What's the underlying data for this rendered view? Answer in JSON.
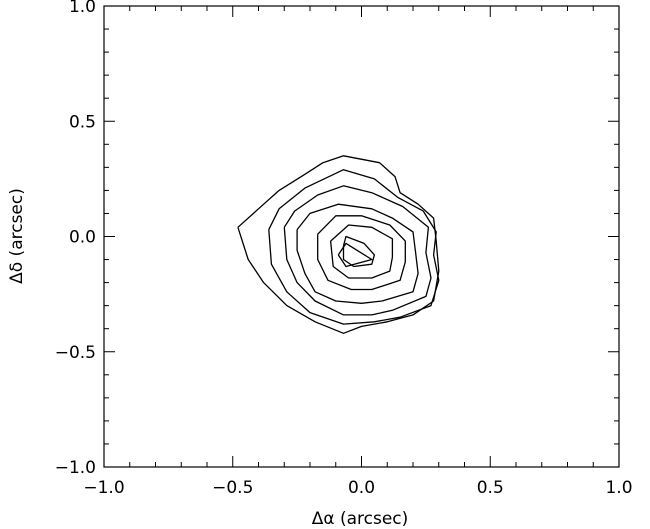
{
  "chart_data": {
    "type": "contour",
    "xlabel": "Δα (arcsec)",
    "ylabel": "Δδ (arcsec)",
    "xlim": [
      -1.0,
      1.0
    ],
    "ylim": [
      -1.0,
      1.0
    ],
    "x_major_ticks": [
      -1.0,
      -0.5,
      0.0,
      0.5,
      1.0
    ],
    "y_major_ticks": [
      -1.0,
      -0.5,
      0.0,
      0.5,
      1.0
    ],
    "x_tick_labels": [
      "−1.0",
      "−0.5",
      "0.0",
      "0.5",
      "1.0"
    ],
    "y_tick_labels": [
      "−1.0",
      "−0.5",
      "0.0",
      "0.5",
      "1.0"
    ],
    "minor_ticks_per_major": 5,
    "grid": false,
    "contours": [
      [
        [
          -0.48,
          0.04
        ],
        [
          -0.4,
          0.12
        ],
        [
          -0.32,
          0.2
        ],
        [
          -0.22,
          0.27
        ],
        [
          -0.15,
          0.32
        ],
        [
          -0.07,
          0.35
        ],
        [
          0.07,
          0.32
        ],
        [
          0.13,
          0.26
        ],
        [
          0.15,
          0.19
        ],
        [
          0.22,
          0.14
        ],
        [
          0.28,
          0.08
        ],
        [
          0.29,
          -0.02
        ],
        [
          0.3,
          -0.15
        ],
        [
          0.28,
          -0.28
        ],
        [
          0.2,
          -0.34
        ],
        [
          0.1,
          -0.37
        ],
        [
          0.0,
          -0.39
        ],
        [
          -0.07,
          -0.42
        ],
        [
          -0.18,
          -0.37
        ],
        [
          -0.29,
          -0.3
        ],
        [
          -0.38,
          -0.2
        ],
        [
          -0.44,
          -0.1
        ],
        [
          -0.48,
          0.04
        ]
      ],
      [
        [
          -0.36,
          0.03
        ],
        [
          -0.32,
          0.12
        ],
        [
          -0.22,
          0.21
        ],
        [
          -0.07,
          0.29
        ],
        [
          0.05,
          0.25
        ],
        [
          0.14,
          0.17
        ],
        [
          0.24,
          0.11
        ],
        [
          0.29,
          0.02
        ],
        [
          0.28,
          -0.08
        ],
        [
          0.3,
          -0.19
        ],
        [
          0.27,
          -0.3
        ],
        [
          0.15,
          -0.35
        ],
        [
          0.05,
          -0.37
        ],
        [
          -0.07,
          -0.38
        ],
        [
          -0.2,
          -0.33
        ],
        [
          -0.29,
          -0.24
        ],
        [
          -0.35,
          -0.12
        ],
        [
          -0.36,
          0.03
        ]
      ],
      [
        [
          -0.3,
          0.04
        ],
        [
          -0.26,
          0.11
        ],
        [
          -0.17,
          0.18
        ],
        [
          -0.07,
          0.22
        ],
        [
          0.04,
          0.19
        ],
        [
          0.16,
          0.13
        ],
        [
          0.26,
          0.04
        ],
        [
          0.25,
          -0.07
        ],
        [
          0.27,
          -0.18
        ],
        [
          0.25,
          -0.26
        ],
        [
          0.12,
          -0.32
        ],
        [
          0.04,
          -0.34
        ],
        [
          -0.07,
          -0.34
        ],
        [
          -0.18,
          -0.28
        ],
        [
          -0.25,
          -0.2
        ],
        [
          -0.29,
          -0.1
        ],
        [
          -0.3,
          0.04
        ]
      ],
      [
        [
          -0.25,
          0.03
        ],
        [
          -0.2,
          0.1
        ],
        [
          -0.09,
          0.14
        ],
        [
          0.04,
          0.12
        ],
        [
          0.12,
          0.08
        ],
        [
          0.2,
          0.02
        ],
        [
          0.21,
          -0.07
        ],
        [
          0.22,
          -0.16
        ],
        [
          0.2,
          -0.24
        ],
        [
          0.08,
          -0.28
        ],
        [
          0.0,
          -0.29
        ],
        [
          -0.1,
          -0.28
        ],
        [
          -0.18,
          -0.24
        ],
        [
          -0.22,
          -0.16
        ],
        [
          -0.25,
          -0.06
        ],
        [
          -0.25,
          0.03
        ]
      ],
      [
        [
          -0.17,
          0.01
        ],
        [
          -0.1,
          0.09
        ],
        [
          0.0,
          0.09
        ],
        [
          0.11,
          0.05
        ],
        [
          0.17,
          -0.02
        ],
        [
          0.17,
          -0.11
        ],
        [
          0.15,
          -0.19
        ],
        [
          0.04,
          -0.23
        ],
        [
          -0.04,
          -0.23
        ],
        [
          -0.13,
          -0.19
        ],
        [
          -0.17,
          -0.1
        ],
        [
          -0.17,
          0.01
        ]
      ],
      [
        [
          -0.12,
          -0.02
        ],
        [
          -0.05,
          0.05
        ],
        [
          0.04,
          0.04
        ],
        [
          0.12,
          -0.01
        ],
        [
          0.12,
          -0.09
        ],
        [
          0.11,
          -0.15
        ],
        [
          0.04,
          -0.18
        ],
        [
          -0.05,
          -0.18
        ],
        [
          -0.11,
          -0.13
        ],
        [
          -0.12,
          -0.02
        ]
      ],
      [
        [
          -0.07,
          -0.04
        ],
        [
          -0.06,
          0.0
        ],
        [
          0.01,
          -0.03
        ],
        [
          0.05,
          -0.08
        ],
        [
          0.04,
          -0.12
        ],
        [
          -0.03,
          -0.13
        ],
        [
          -0.07,
          -0.1
        ],
        [
          -0.07,
          -0.04
        ]
      ],
      [
        [
          -0.09,
          -0.08
        ],
        [
          -0.06,
          -0.03
        ],
        [
          0.04,
          -0.1
        ],
        [
          -0.06,
          -0.13
        ],
        [
          -0.09,
          -0.08
        ]
      ]
    ]
  }
}
